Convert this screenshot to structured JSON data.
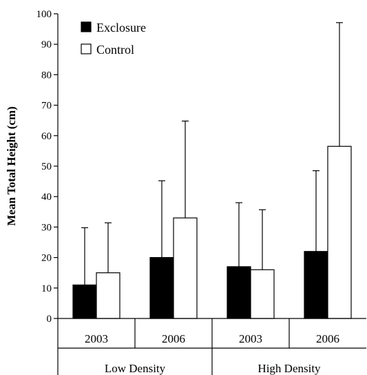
{
  "chart_data": {
    "type": "bar",
    "ylabel": "Mean Total Height (cm)",
    "xlabel": "",
    "ylim": [
      0,
      100
    ],
    "yticks": [
      0,
      10,
      20,
      30,
      40,
      50,
      60,
      70,
      80,
      90,
      100
    ],
    "categories": [
      "2003",
      "2006",
      "2003",
      "2006"
    ],
    "groups": [
      {
        "label": "Low Density",
        "categories": [
          "2003",
          "2006"
        ]
      },
      {
        "label": "High Density",
        "categories": [
          "2003",
          "2006"
        ]
      }
    ],
    "series": [
      {
        "name": "Exclosure",
        "color": "#000000",
        "values": [
          11,
          20,
          17,
          22
        ],
        "error_upper": [
          29.8,
          45.2,
          38,
          48.5
        ]
      },
      {
        "name": "Control",
        "color": "#ffffff",
        "values": [
          15,
          33,
          16,
          56.5
        ],
        "error_upper": [
          31.4,
          64.8,
          35.7,
          97.1
        ]
      }
    ],
    "legend_position": "top-left",
    "grid": false
  }
}
